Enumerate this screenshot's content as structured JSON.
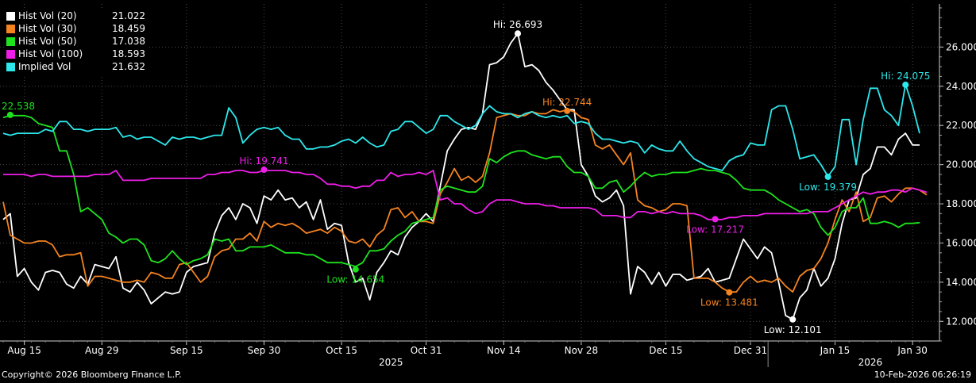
{
  "chart_data": {
    "type": "line",
    "ylim": [
      11,
      28.2
    ],
    "yticks": [
      "12.000",
      "14.000",
      "16.000",
      "18.000",
      "20.000",
      "22.000",
      "24.000",
      "26.000"
    ],
    "x_labels": [
      "Aug 15",
      "Aug 29",
      "Sep 15",
      "Sep 30",
      "Oct 15",
      "Oct 31",
      "Nov 14",
      "Nov 28",
      "Dec 15",
      "Dec 31",
      "Jan 15",
      "Jan 30"
    ],
    "year_labels": [
      "2025",
      "2026"
    ],
    "grid": true,
    "legend_position": "top-left",
    "series": [
      {
        "name": "Hist Vol (20)",
        "last": "21.022",
        "color": "#ffffff",
        "values": [
          17.2,
          17.5,
          14.3,
          14.7,
          14.0,
          13.6,
          14.5,
          14.6,
          14.5,
          13.9,
          13.7,
          14.3,
          13.9,
          14.9,
          14.8,
          14.7,
          15.3,
          13.7,
          13.5,
          14.0,
          13.6,
          12.9,
          13.2,
          13.5,
          13.4,
          13.5,
          14.5,
          14.8,
          14.9,
          15.0,
          16.5,
          17.4,
          17.8,
          17.2,
          18.0,
          17.8,
          17.0,
          18.4,
          18.2,
          18.7,
          18.2,
          18.3,
          17.8,
          18.1,
          17.2,
          18.2,
          16.7,
          17.0,
          16.9,
          15.0,
          14.0,
          14.2,
          13.1,
          14.5,
          15.0,
          15.6,
          15.4,
          16.3,
          16.8,
          17.1,
          17.5,
          17.1,
          18.9,
          20.7,
          21.3,
          21.8,
          21.9,
          21.8,
          22.6,
          25.1,
          25.2,
          25.5,
          26.2,
          26.7,
          25.0,
          25.1,
          24.8,
          24.2,
          23.8,
          23.3,
          22.8,
          22.8,
          20.0,
          19.4,
          18.4,
          18.1,
          18.3,
          18.7,
          17.9,
          13.4,
          14.8,
          14.5,
          13.9,
          14.5,
          13.8,
          14.4,
          14.4,
          14.1,
          14.2,
          14.3,
          14.7,
          14.0,
          14.1,
          14.2,
          15.2,
          16.2,
          15.7,
          15.2,
          15.8,
          15.5,
          14.0,
          12.3,
          12.1,
          13.2,
          13.6,
          14.7,
          13.8,
          14.2,
          15.2,
          17.0,
          18.2,
          18.3,
          19.5,
          19.8,
          20.9,
          20.9,
          20.5,
          21.3,
          21.6,
          21.0,
          21.0
        ]
      },
      {
        "name": "Hist Vol (30)",
        "last": "18.459",
        "color": "#f5831f",
        "values": [
          18.1,
          16.4,
          16.2,
          16.0,
          16.0,
          16.1,
          16.1,
          15.9,
          15.3,
          15.4,
          15.4,
          15.5,
          13.8,
          14.3,
          14.3,
          14.2,
          14.1,
          14.0,
          14.0,
          14.1,
          14.0,
          14.5,
          14.4,
          14.2,
          14.2,
          14.9,
          15.0,
          14.5,
          14.0,
          14.3,
          15.3,
          15.6,
          15.7,
          16.2,
          16.2,
          16.5,
          16.1,
          17.1,
          16.8,
          17.0,
          16.9,
          17.0,
          16.8,
          16.5,
          16.6,
          16.7,
          16.5,
          16.8,
          16.6,
          16.1,
          16.0,
          16.2,
          15.8,
          16.4,
          16.7,
          17.7,
          17.8,
          17.3,
          17.6,
          17.1,
          17.1,
          17.0,
          18.5,
          19.1,
          19.8,
          19.2,
          19.4,
          19.1,
          19.4,
          20.6,
          22.4,
          22.5,
          22.6,
          22.5,
          22.5,
          22.7,
          22.6,
          22.6,
          22.8,
          22.7,
          22.8,
          22.7,
          22.4,
          22.3,
          21.0,
          20.8,
          21.0,
          20.5,
          20.0,
          20.6,
          18.2,
          17.9,
          17.8,
          17.6,
          17.7,
          18.0,
          18.0,
          17.9,
          14.2,
          14.2,
          14.2,
          14.0,
          13.7,
          13.5,
          13.5,
          14.0,
          14.3,
          14.0,
          14.1,
          14.0,
          14.2,
          13.8,
          13.5,
          14.3,
          14.6,
          14.7,
          15.2,
          16.0,
          17.2,
          18.2,
          17.6,
          18.6,
          17.1,
          17.3,
          18.3,
          18.4,
          18.1,
          18.5,
          18.8,
          18.8,
          18.7,
          18.46
        ]
      },
      {
        "name": "Hist Vol (50)",
        "last": "17.038",
        "color": "#1ee31e",
        "values": [
          22.4,
          22.5,
          22.5,
          22.5,
          22.4,
          22.1,
          22.0,
          21.9,
          20.7,
          20.7,
          19.5,
          17.6,
          17.8,
          17.5,
          17.2,
          16.5,
          16.3,
          16.0,
          16.2,
          16.2,
          15.9,
          15.1,
          15.0,
          15.2,
          15.6,
          15.2,
          14.9,
          15.1,
          15.2,
          15.4,
          16.2,
          16.1,
          16.2,
          15.6,
          15.6,
          15.8,
          15.8,
          15.8,
          15.9,
          15.7,
          15.5,
          15.5,
          15.5,
          15.4,
          15.4,
          15.2,
          15.0,
          15.0,
          15.0,
          14.9,
          14.8,
          15.0,
          15.6,
          15.6,
          15.7,
          16.1,
          16.4,
          16.6,
          17.0,
          17.1,
          17.2,
          17.3,
          18.7,
          18.9,
          18.8,
          18.7,
          18.6,
          18.6,
          18.9,
          20.3,
          20.1,
          20.4,
          20.6,
          20.7,
          20.7,
          20.5,
          20.4,
          20.3,
          20.4,
          20.4,
          19.9,
          19.6,
          19.6,
          19.4,
          18.8,
          18.8,
          19.1,
          19.2,
          18.6,
          18.9,
          19.3,
          19.6,
          19.4,
          19.5,
          19.5,
          19.6,
          19.6,
          19.6,
          19.7,
          19.8,
          19.7,
          19.7,
          19.6,
          19.5,
          19.2,
          18.8,
          18.7,
          18.7,
          18.7,
          18.5,
          18.2,
          18.0,
          17.8,
          17.6,
          17.7,
          17.5,
          16.8,
          16.4,
          16.8,
          17.6,
          17.8,
          17.8,
          18.3,
          17.0,
          17.0,
          17.1,
          17.0,
          16.8,
          17.0,
          17.0,
          17.04
        ]
      },
      {
        "name": "Hist Vol (100)",
        "last": "18.593",
        "color": "#ee1ee8",
        "values": [
          19.5,
          19.5,
          19.5,
          19.5,
          19.4,
          19.5,
          19.5,
          19.4,
          19.4,
          19.4,
          19.4,
          19.4,
          19.4,
          19.5,
          19.5,
          19.5,
          19.7,
          19.2,
          19.2,
          19.2,
          19.2,
          19.3,
          19.3,
          19.3,
          19.3,
          19.3,
          19.3,
          19.3,
          19.3,
          19.5,
          19.5,
          19.6,
          19.6,
          19.7,
          19.7,
          19.6,
          19.6,
          19.7,
          19.7,
          19.7,
          19.7,
          19.6,
          19.6,
          19.5,
          19.5,
          19.3,
          19.0,
          19.0,
          18.9,
          18.9,
          18.8,
          18.9,
          18.9,
          19.2,
          19.2,
          19.6,
          19.4,
          19.5,
          19.5,
          19.6,
          19.5,
          19.7,
          18.2,
          18.3,
          18.0,
          18.0,
          17.7,
          17.5,
          17.6,
          18.0,
          18.2,
          18.2,
          18.2,
          18.1,
          18.0,
          18.0,
          18.0,
          17.9,
          17.9,
          17.8,
          17.8,
          17.8,
          17.8,
          17.8,
          17.7,
          17.4,
          17.4,
          17.4,
          17.3,
          17.3,
          17.6,
          17.6,
          17.5,
          17.6,
          17.5,
          17.6,
          17.5,
          17.5,
          17.5,
          17.4,
          17.2,
          17.2,
          17.2,
          17.3,
          17.3,
          17.4,
          17.4,
          17.4,
          17.5,
          17.5,
          17.5,
          17.5,
          17.5,
          17.5,
          17.5,
          17.6,
          17.6,
          17.6,
          17.8,
          18.0,
          18.2,
          18.4,
          18.6,
          18.5,
          18.6,
          18.6,
          18.7,
          18.7,
          18.6,
          18.8,
          18.7,
          18.59
        ]
      },
      {
        "name": "Implied Vol",
        "last": "21.632",
        "color": "#2ce8ec",
        "values": [
          21.6,
          21.5,
          21.6,
          21.6,
          21.6,
          21.6,
          21.8,
          21.7,
          22.2,
          22.2,
          21.8,
          21.8,
          21.7,
          21.8,
          21.8,
          21.8,
          21.9,
          21.4,
          21.5,
          21.3,
          21.4,
          21.4,
          21.2,
          21.0,
          21.4,
          21.3,
          21.4,
          21.4,
          21.3,
          21.4,
          21.5,
          21.5,
          22.9,
          22.4,
          21.1,
          21.5,
          21.8,
          21.9,
          21.8,
          21.9,
          21.5,
          21.3,
          21.3,
          20.8,
          20.8,
          20.9,
          20.9,
          21.0,
          21.2,
          21.3,
          21.1,
          21.4,
          21.1,
          20.9,
          21.0,
          21.7,
          21.8,
          22.2,
          22.2,
          21.9,
          21.6,
          21.8,
          22.5,
          22.5,
          22.2,
          22.0,
          21.8,
          22.0,
          22.6,
          23.0,
          22.7,
          22.6,
          22.6,
          22.4,
          22.6,
          22.7,
          22.5,
          22.4,
          22.5,
          22.4,
          22.5,
          22.1,
          22.2,
          22.1,
          21.6,
          21.3,
          21.3,
          21.2,
          21.1,
          21.2,
          21.1,
          20.6,
          21.0,
          20.8,
          20.7,
          20.7,
          21.2,
          20.7,
          20.3,
          20.1,
          19.9,
          19.8,
          19.7,
          20.2,
          20.4,
          20.5,
          21.1,
          21.0,
          21.0,
          22.8,
          23.0,
          23.0,
          21.8,
          20.3,
          20.4,
          20.5,
          20.0,
          19.4,
          19.9,
          22.3,
          22.3,
          20.0,
          22.3,
          23.9,
          23.9,
          22.8,
          22.5,
          22.0,
          24.1,
          23.0,
          21.6
        ]
      }
    ],
    "annotations": [
      {
        "label": "Hi: 26.693",
        "series": 0,
        "index": 73
      },
      {
        "label": "Low: 12.101",
        "series": 0,
        "index": 112
      },
      {
        "label": "Hi: 22.744",
        "series": 1,
        "index": 80
      },
      {
        "label": "Low: 13.481",
        "series": 1,
        "index": 103
      },
      {
        "label": "Hi: 22.538",
        "series": 2,
        "index": 1
      },
      {
        "label": "Low: 14.654",
        "series": 2,
        "index": 50
      },
      {
        "label": "Hi: 19.741",
        "series": 3,
        "index": 37
      },
      {
        "label": "Low: 17.217",
        "series": 3,
        "index": 101
      },
      {
        "label": "Hi: 24.075",
        "series": 4,
        "index": 128
      },
      {
        "label": "Low: 19.379",
        "series": 4,
        "index": 117
      }
    ]
  },
  "footer": {
    "copyright": "Copyright© 2026 Bloomberg Finance L.P.",
    "timestamp": "10-Feb-2026 06:26:19"
  }
}
